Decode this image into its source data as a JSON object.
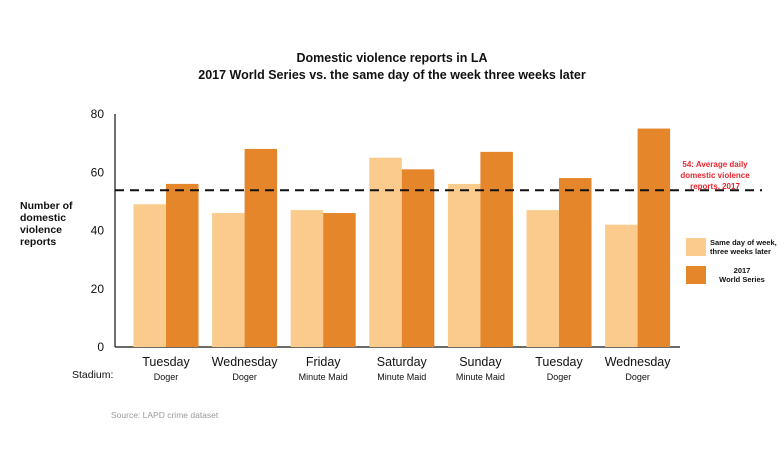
{
  "chart_data": {
    "type": "bar",
    "title": "Domestic violence reports in LA",
    "subtitle": "2017  World Series vs. the same day of the week three weeks later",
    "ylabel_lines": [
      "Number of",
      "domestic",
      "violence",
      "reports"
    ],
    "ylim": [
      0,
      80
    ],
    "yticks": [
      0,
      20,
      40,
      60,
      80
    ],
    "grid": false,
    "legend_position": "right",
    "categories": [
      "Tuesday",
      "Wednesday",
      "Friday",
      "Saturday",
      "Sunday",
      "Tuesday",
      "Wednesday"
    ],
    "stadiums": [
      "Doger",
      "Doger",
      "Minute Maid",
      "Minute Maid",
      "Minute Maid",
      "Doger",
      "Doger"
    ],
    "stadium_label": "Stadium:",
    "series": [
      {
        "name": "Same day of week, three weeks later",
        "values": [
          49,
          46,
          47,
          65,
          56,
          47,
          42
        ],
        "color": "#fbcb8d"
      },
      {
        "name": "2017 World Series",
        "values": [
          56,
          68,
          46,
          61,
          67,
          58,
          75
        ],
        "color": "#e5862b"
      }
    ],
    "reference_line": {
      "value": 54,
      "lines": [
        "54: Average daily",
        "domestic violence",
        "reports, 2017"
      ],
      "color": "#e8262f"
    },
    "source": "Source: LAPD crime dataset"
  },
  "legend": {
    "item1_lines": [
      "Same day of week,",
      "three weeks later"
    ],
    "item2_lines": [
      "2017",
      "World Series"
    ]
  }
}
